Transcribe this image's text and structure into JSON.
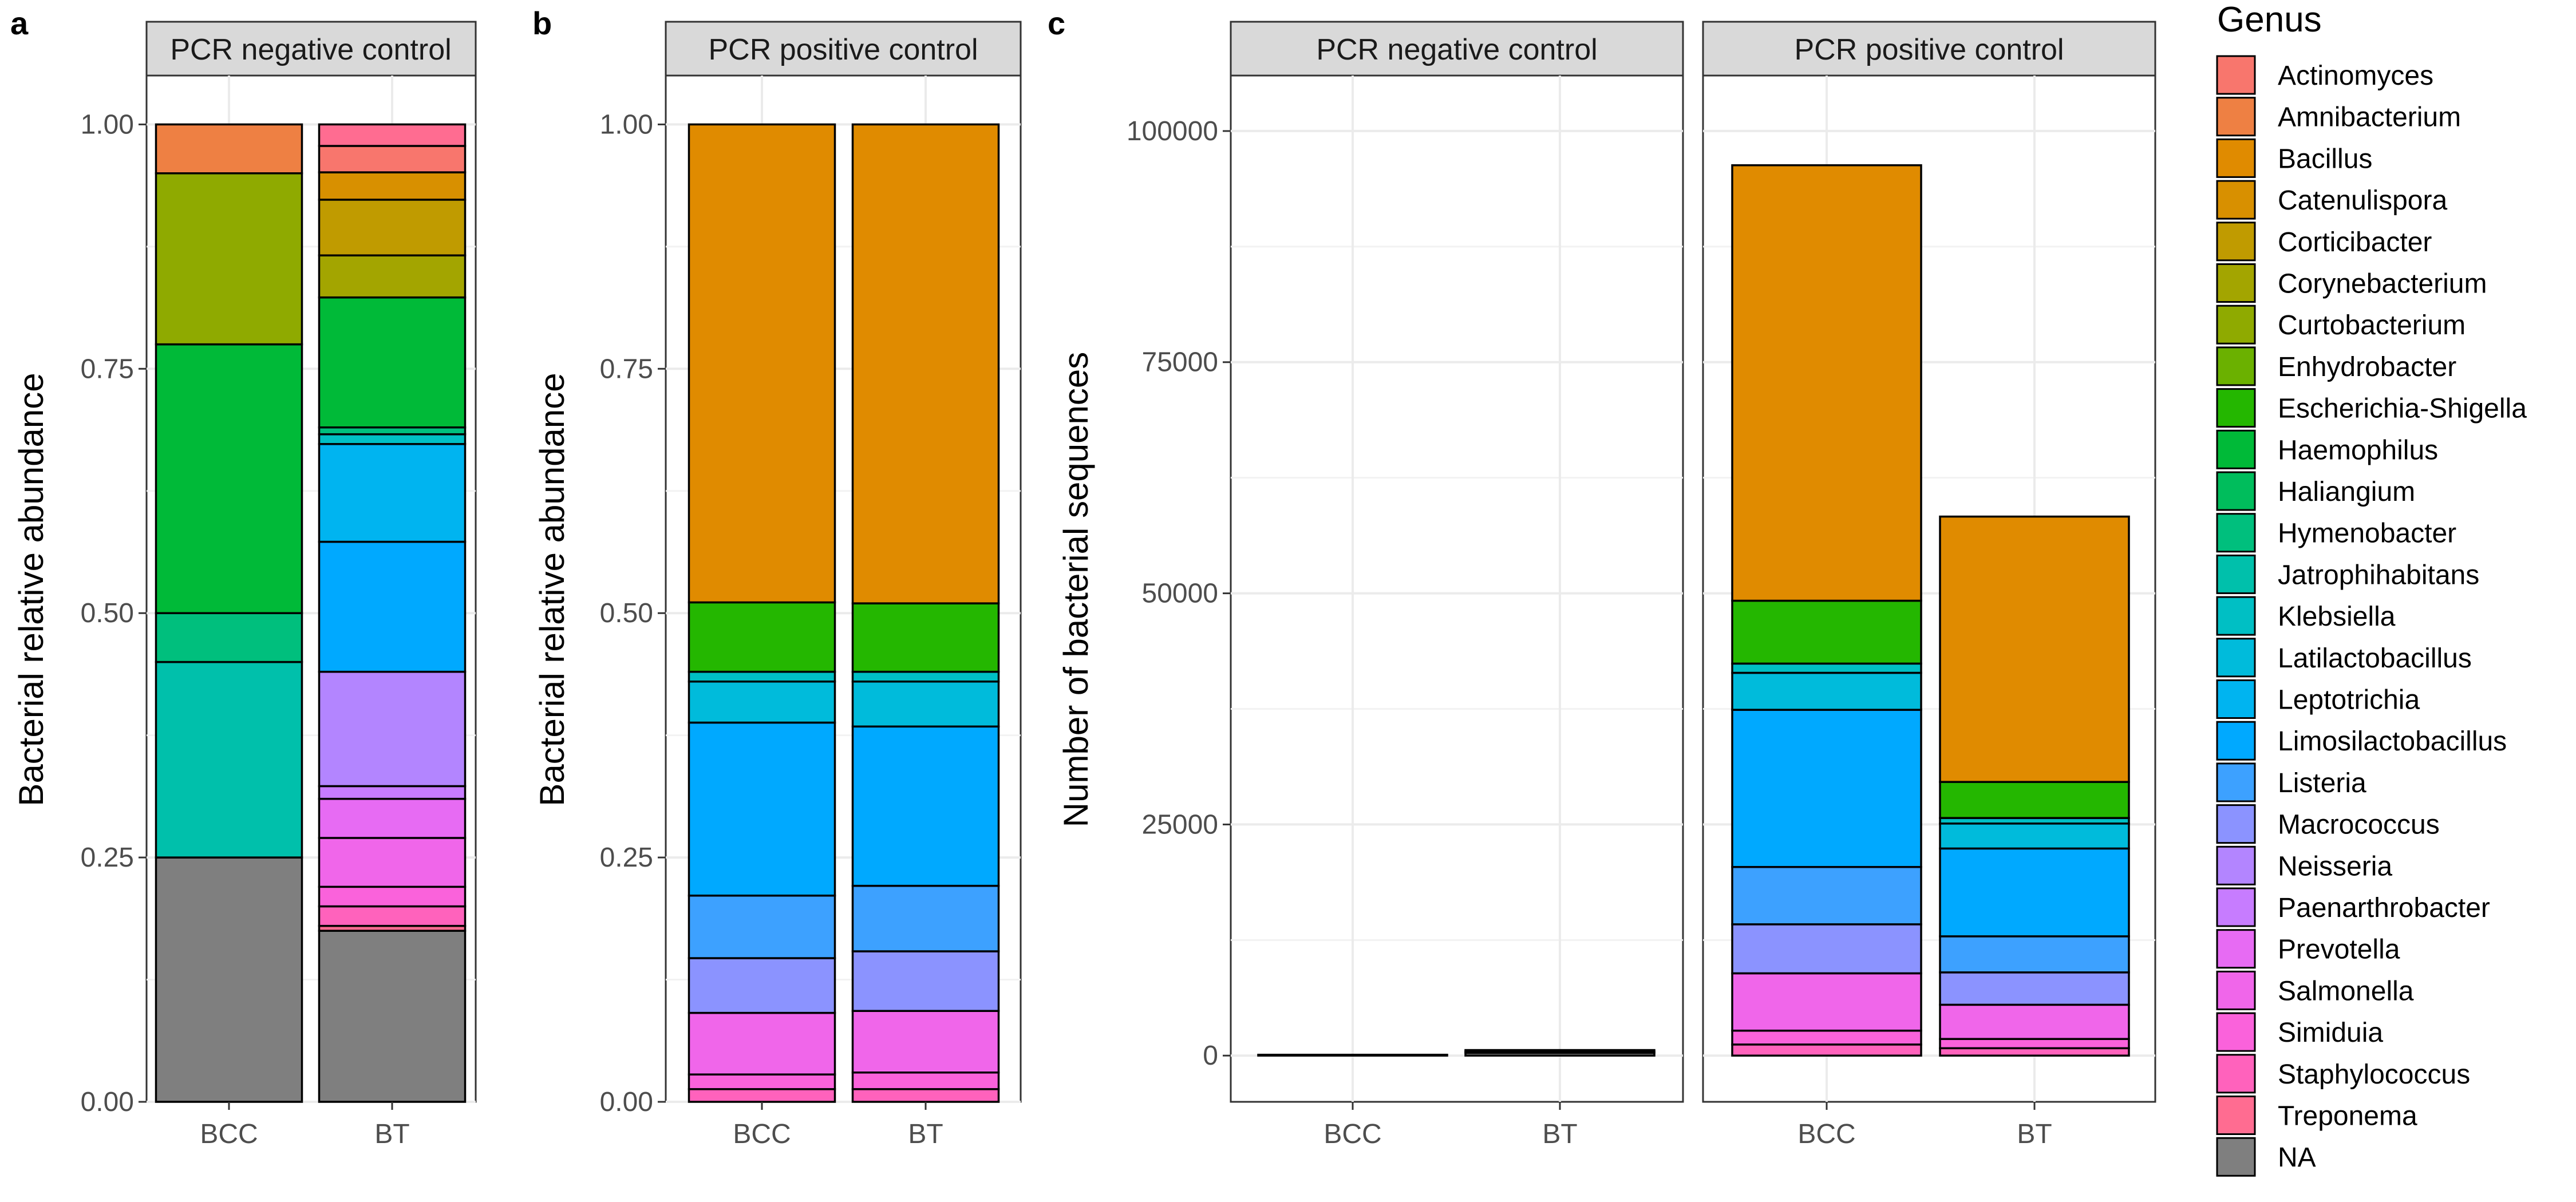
{
  "panel_letters": {
    "a": "a",
    "b": "b",
    "c": "c"
  },
  "legend": {
    "title": "Genus",
    "items": [
      {
        "label": "Actinomyces",
        "color": "#F8766D"
      },
      {
        "label": "Amnibacterium",
        "color": "#EE8043"
      },
      {
        "label": "Bacillus",
        "color": "#E08B00"
      },
      {
        "label": "Catenulispora",
        "color": "#D89000"
      },
      {
        "label": "Corticibacter",
        "color": "#C09B00"
      },
      {
        "label": "Corynebacterium",
        "color": "#A3A500"
      },
      {
        "label": "Curtobacterium",
        "color": "#8FAA00"
      },
      {
        "label": "Enhydrobacter",
        "color": "#6BB100"
      },
      {
        "label": "Escherichia-Shigella",
        "color": "#24B700"
      },
      {
        "label": "Haemophilus",
        "color": "#00BA38"
      },
      {
        "label": "Haliangium",
        "color": "#00BD5C"
      },
      {
        "label": "Hymenobacter",
        "color": "#00BF7D"
      },
      {
        "label": "Jatrophihabitans",
        "color": "#00C0AB"
      },
      {
        "label": "Klebsiella",
        "color": "#00BFC4"
      },
      {
        "label": "Latilactobacillus",
        "color": "#00BBDB"
      },
      {
        "label": "Leptotrichia",
        "color": "#00B4F0"
      },
      {
        "label": "Limosilactobacillus",
        "color": "#00A9FF"
      },
      {
        "label": "Listeria",
        "color": "#3DA1FF"
      },
      {
        "label": "Macrococcus",
        "color": "#8B93FF"
      },
      {
        "label": "Neisseria",
        "color": "#B385FF"
      },
      {
        "label": "Paenarthrobacter",
        "color": "#C77CFF"
      },
      {
        "label": "Prevotella",
        "color": "#E76BF3"
      },
      {
        "label": "Salmonella",
        "color": "#F066EA"
      },
      {
        "label": "Simiduia",
        "color": "#FA62DB"
      },
      {
        "label": "Staphylococcus",
        "color": "#FF62BC"
      },
      {
        "label": "Treponema",
        "color": "#FF6C91"
      },
      {
        "label": "NA",
        "color": "#7F7F7F"
      }
    ]
  },
  "chart_data": [
    {
      "id": "a",
      "type": "bar",
      "stacked": true,
      "facet": "PCR negative control",
      "ylabel": "Bacterial relative abundance",
      "ylim": [
        0,
        1.05
      ],
      "yticks": [
        "0.00",
        "0.25",
        "0.50",
        "0.75",
        "1.00"
      ],
      "categories": [
        "BCC",
        "BT"
      ],
      "stacks": [
        [
          {
            "genus": "NA",
            "value": 0.25
          },
          {
            "genus": "Jatrophihabitans",
            "value": 0.2
          },
          {
            "genus": "Hymenobacter",
            "value": 0.05
          },
          {
            "genus": "Haemophilus",
            "value": 0.275
          },
          {
            "genus": "Curtobacterium",
            "value": 0.175
          },
          {
            "genus": "Amnibacterium",
            "value": 0.05
          }
        ],
        [
          {
            "genus": "NA",
            "value": 0.175
          },
          {
            "genus": "Treponema",
            "value": 0.005
          },
          {
            "genus": "Staphylococcus",
            "value": 0.02
          },
          {
            "genus": "Simiduia",
            "value": 0.02
          },
          {
            "genus": "Salmonella",
            "value": 0.05
          },
          {
            "genus": "Prevotella",
            "value": 0.04
          },
          {
            "genus": "Paenarthrobacter",
            "value": 0.013
          },
          {
            "genus": "Neisseria",
            "value": 0.117
          },
          {
            "genus": "Limosilactobacillus",
            "value": 0.133
          },
          {
            "genus": "Leptotrichia",
            "value": 0.1
          },
          {
            "genus": "Klebsiella",
            "value": 0.01
          },
          {
            "genus": "Hymenobacter",
            "value": 0.007
          },
          {
            "genus": "Haemophilus",
            "value": 0.133
          },
          {
            "genus": "Corynebacterium",
            "value": 0.043
          },
          {
            "genus": "Corticibacter",
            "value": 0.057
          },
          {
            "genus": "Catenulispora",
            "value": 0.028
          },
          {
            "genus": "Actinomyces",
            "value": 0.027
          },
          {
            "genus": "Treponema",
            "value": 0.022
          }
        ]
      ]
    },
    {
      "id": "b",
      "type": "bar",
      "stacked": true,
      "facet": "PCR positive control",
      "ylabel": "Bacterial relative abundance",
      "ylim": [
        0,
        1.05
      ],
      "yticks": [
        "0.00",
        "0.25",
        "0.50",
        "0.75",
        "1.00"
      ],
      "categories": [
        "BCC",
        "BT"
      ],
      "stacks": [
        [
          {
            "genus": "Staphylococcus",
            "value": 0.013
          },
          {
            "genus": "Simiduia",
            "value": 0.015
          },
          {
            "genus": "Salmonella",
            "value": 0.063
          },
          {
            "genus": "Macrococcus",
            "value": 0.056
          },
          {
            "genus": "Listeria",
            "value": 0.064
          },
          {
            "genus": "Limosilactobacillus",
            "value": 0.177
          },
          {
            "genus": "Latilactobacillus",
            "value": 0.042
          },
          {
            "genus": "Klebsiella",
            "value": 0.01
          },
          {
            "genus": "Escherichia-Shigella",
            "value": 0.071
          },
          {
            "genus": "Bacillus",
            "value": 0.489
          }
        ],
        [
          {
            "genus": "Staphylococcus",
            "value": 0.013
          },
          {
            "genus": "Simiduia",
            "value": 0.017
          },
          {
            "genus": "Salmonella",
            "value": 0.063
          },
          {
            "genus": "Macrococcus",
            "value": 0.061
          },
          {
            "genus": "Listeria",
            "value": 0.067
          },
          {
            "genus": "Limosilactobacillus",
            "value": 0.163
          },
          {
            "genus": "Latilactobacillus",
            "value": 0.046
          },
          {
            "genus": "Klebsiella",
            "value": 0.01
          },
          {
            "genus": "Escherichia-Shigella",
            "value": 0.07
          },
          {
            "genus": "Bacillus",
            "value": 0.49
          }
        ]
      ]
    },
    {
      "id": "c-negative",
      "type": "bar",
      "stacked": true,
      "facet": "PCR negative control",
      "ylabel": "Number of bacterial sequences",
      "ylim": [
        -5000,
        106000
      ],
      "yticks": [
        "0",
        "25000",
        "50000",
        "75000",
        "100000"
      ],
      "categories": [
        "BCC",
        "BT"
      ],
      "stacks": [
        [
          {
            "genus": "NA",
            "value": 40
          }
        ],
        [
          {
            "genus": "NA",
            "value": 300
          },
          {
            "genus": "Haemophilus",
            "value": 150
          },
          {
            "genus": "Limosilactobacillus",
            "value": 150
          }
        ]
      ]
    },
    {
      "id": "c-positive",
      "type": "bar",
      "stacked": true,
      "facet": "PCR positive control",
      "ylabel": "",
      "ylim": [
        -5000,
        106000
      ],
      "yticks": [],
      "categories": [
        "BCC",
        "BT"
      ],
      "stacks": [
        [
          {
            "genus": "Staphylococcus",
            "value": 1200
          },
          {
            "genus": "Simiduia",
            "value": 1500
          },
          {
            "genus": "Salmonella",
            "value": 6200
          },
          {
            "genus": "Macrococcus",
            "value": 5300
          },
          {
            "genus": "Listeria",
            "value": 6200
          },
          {
            "genus": "Limosilactobacillus",
            "value": 17000
          },
          {
            "genus": "Latilactobacillus",
            "value": 4000
          },
          {
            "genus": "Klebsiella",
            "value": 1000
          },
          {
            "genus": "Escherichia-Shigella",
            "value": 6800
          },
          {
            "genus": "Bacillus",
            "value": 47100
          }
        ],
        [
          {
            "genus": "Staphylococcus",
            "value": 800
          },
          {
            "genus": "Simiduia",
            "value": 1000
          },
          {
            "genus": "Salmonella",
            "value": 3700
          },
          {
            "genus": "Macrococcus",
            "value": 3500
          },
          {
            "genus": "Listeria",
            "value": 3900
          },
          {
            "genus": "Limosilactobacillus",
            "value": 9500
          },
          {
            "genus": "Latilactobacillus",
            "value": 2700
          },
          {
            "genus": "Klebsiella",
            "value": 600
          },
          {
            "genus": "Escherichia-Shigella",
            "value": 3900
          },
          {
            "genus": "Bacillus",
            "value": 28700
          }
        ]
      ]
    }
  ]
}
